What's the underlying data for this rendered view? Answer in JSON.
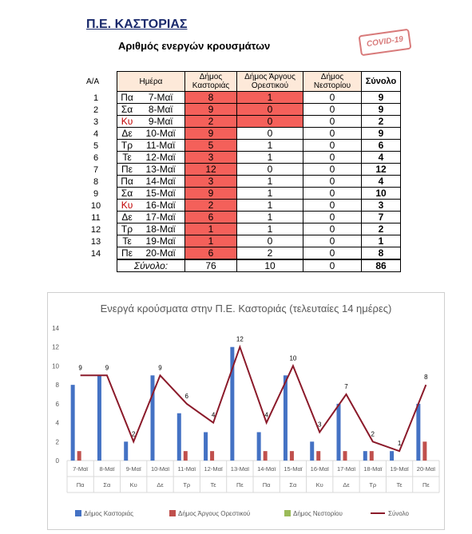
{
  "header": {
    "title": "Π.Ε. ΚΑΣΤΟΡΙΑΣ",
    "subtitle": "Αριθμός ενεργών κρουσμάτων",
    "stamp": "COVID-19"
  },
  "table": {
    "index_header": "Α/Α",
    "headers": [
      "Ημέρα",
      "Δήμος Καστοριάς",
      "Δήμος Άργους Ορεστικού",
      "Δήμος Νεστορίου",
      "Σύνολο"
    ],
    "rows": [
      {
        "n": "1",
        "dow": "Πα",
        "date": "7-Μαϊ",
        "k": "8",
        "a": "1",
        "ne": "0",
        "s": "9"
      },
      {
        "n": "2",
        "dow": "Σα",
        "date": "8-Μαϊ",
        "k": "9",
        "a": "0",
        "ne": "0",
        "s": "9"
      },
      {
        "n": "3",
        "dow": "Κυ",
        "date": "9-Μαϊ",
        "k": "2",
        "a": "0",
        "ne": "0",
        "s": "2"
      },
      {
        "n": "4",
        "dow": "Δε",
        "date": "10-Μαϊ",
        "k": "9",
        "a": "0",
        "ne": "0",
        "s": "9"
      },
      {
        "n": "5",
        "dow": "Τρ",
        "date": "11-Μαϊ",
        "k": "5",
        "a": "1",
        "ne": "0",
        "s": "6"
      },
      {
        "n": "6",
        "dow": "Τε",
        "date": "12-Μαϊ",
        "k": "3",
        "a": "1",
        "ne": "0",
        "s": "4"
      },
      {
        "n": "7",
        "dow": "Πε",
        "date": "13-Μαϊ",
        "k": "12",
        "a": "0",
        "ne": "0",
        "s": "12"
      },
      {
        "n": "8",
        "dow": "Πα",
        "date": "14-Μαϊ",
        "k": "3",
        "a": "1",
        "ne": "0",
        "s": "4"
      },
      {
        "n": "9",
        "dow": "Σα",
        "date": "15-Μαϊ",
        "k": "9",
        "a": "1",
        "ne": "0",
        "s": "10"
      },
      {
        "n": "10",
        "dow": "Κυ",
        "date": "16-Μαϊ",
        "k": "2",
        "a": "1",
        "ne": "0",
        "s": "3"
      },
      {
        "n": "11",
        "dow": "Δε",
        "date": "17-Μαϊ",
        "k": "6",
        "a": "1",
        "ne": "0",
        "s": "7"
      },
      {
        "n": "12",
        "dow": "Τρ",
        "date": "18-Μαϊ",
        "k": "1",
        "a": "1",
        "ne": "0",
        "s": "2"
      },
      {
        "n": "13",
        "dow": "Τε",
        "date": "19-Μαϊ",
        "k": "1",
        "a": "0",
        "ne": "0",
        "s": "1"
      },
      {
        "n": "14",
        "dow": "Πε",
        "date": "20-Μαϊ",
        "k": "6",
        "a": "2",
        "ne": "0",
        "s": "8"
      }
    ],
    "total_label": "Σύνολο:",
    "totals": {
      "k": "76",
      "a": "10",
      "ne": "0",
      "s": "86"
    },
    "colors": {
      "highlight": "#f4605a",
      "header_bg": "#fde9d9",
      "sunday_text": "#c00000"
    }
  },
  "chart_data": {
    "type": "bar",
    "title": "Ενεργά κρούσματα στην Π.Ε. Καστοριάς (τελευταίες 14 ημέρες)",
    "categories": [
      "7-Μαϊ",
      "8-Μαϊ",
      "9-Μαϊ",
      "10-Μαϊ",
      "11-Μαϊ",
      "12-Μαϊ",
      "13-Μαϊ",
      "14-Μαϊ",
      "15-Μαϊ",
      "16-Μαϊ",
      "17-Μαϊ",
      "18-Μαϊ",
      "19-Μαϊ",
      "20-Μαϊ"
    ],
    "days": [
      "Πα",
      "Σα",
      "Κυ",
      "Δε",
      "Τρ",
      "Τε",
      "Πε",
      "Πα",
      "Σα",
      "Κυ",
      "Δε",
      "Τρ",
      "Τε",
      "Πε"
    ],
    "series": [
      {
        "name": "Δήμος Καστοριάς",
        "type": "bar",
        "color": "#4472c4",
        "values": [
          8,
          9,
          2,
          9,
          5,
          3,
          12,
          3,
          9,
          2,
          6,
          1,
          1,
          6
        ]
      },
      {
        "name": "Δήμος Άργους Ορεστικού",
        "type": "bar",
        "color": "#c0504d",
        "values": [
          1,
          0,
          0,
          0,
          1,
          1,
          0,
          1,
          1,
          1,
          1,
          1,
          0,
          2
        ]
      },
      {
        "name": "Δήμος Νεστορίου",
        "type": "bar",
        "color": "#9bbb59",
        "values": [
          0,
          0,
          0,
          0,
          0,
          0,
          0,
          0,
          0,
          0,
          0,
          0,
          0,
          0
        ]
      },
      {
        "name": "Σύνολο",
        "type": "line",
        "color": "#8b1a2a",
        "values": [
          9,
          9,
          2,
          9,
          6,
          4,
          12,
          4,
          10,
          3,
          7,
          2,
          1,
          8
        ]
      }
    ],
    "point_labels": [
      "9",
      "9",
      "2",
      "9",
      "6",
      "4",
      "12",
      "4",
      "10",
      "3",
      "7",
      "2",
      "1",
      "8"
    ],
    "yticks": [
      "0",
      "2",
      "4",
      "6",
      "8",
      "10",
      "12",
      "14"
    ],
    "ylim": [
      0,
      14
    ],
    "grid": false,
    "legend": "bottom"
  }
}
